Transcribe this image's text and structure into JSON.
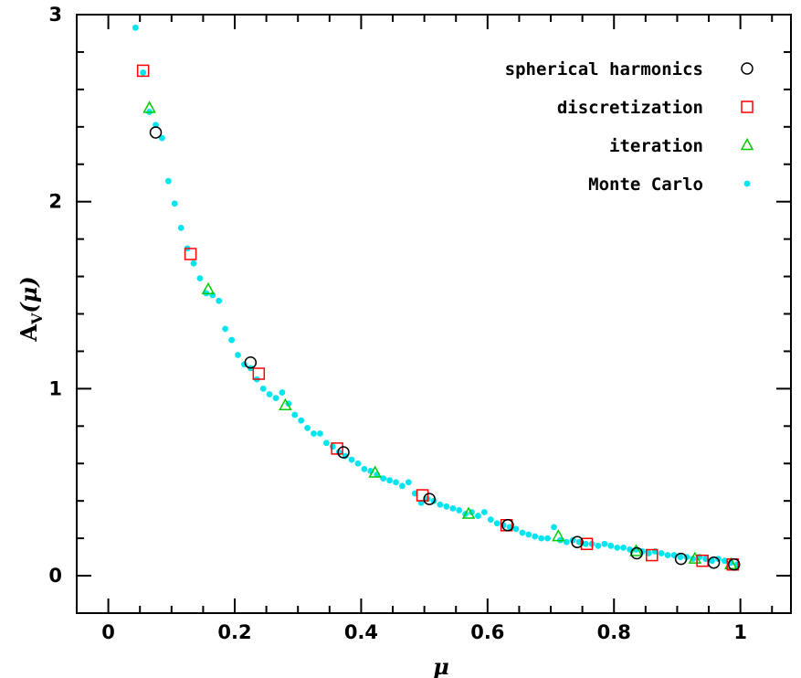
{
  "chart_data": {
    "type": "scatter",
    "title": "",
    "xlabel": "μ",
    "ylabel_main": "A",
    "ylabel_sub": "V",
    "ylabel_paren": "(μ)",
    "xlim": [
      -0.05,
      1.08
    ],
    "ylim": [
      -0.2,
      3.0
    ],
    "x_ticks": [
      0,
      0.2,
      0.4,
      0.6,
      0.8,
      1
    ],
    "x_tick_labels": [
      "0",
      "0.2",
      "0.4",
      "0.6",
      "0.8",
      "1"
    ],
    "y_ticks": [
      0,
      1,
      2,
      3
    ],
    "y_tick_labels": [
      "0",
      "1",
      "2",
      "3"
    ],
    "legend_position": "top-right",
    "grid": false,
    "series": [
      {
        "name": "spherical harmonics",
        "marker": "circle-open",
        "color": "#000000",
        "x": [
          0.075,
          0.225,
          0.372,
          0.508,
          0.632,
          0.742,
          0.836,
          0.906,
          0.958,
          0.99
        ],
        "y": [
          2.37,
          1.14,
          0.66,
          0.41,
          0.27,
          0.18,
          0.12,
          0.09,
          0.07,
          0.06
        ]
      },
      {
        "name": "discretization",
        "marker": "square-open",
        "color": "#ff0000",
        "x": [
          0.055,
          0.13,
          0.238,
          0.362,
          0.497,
          0.63,
          0.757,
          0.86,
          0.94,
          0.988
        ],
        "y": [
          2.7,
          1.72,
          1.08,
          0.68,
          0.43,
          0.27,
          0.17,
          0.11,
          0.08,
          0.06
        ]
      },
      {
        "name": "iteration",
        "marker": "triangle-open",
        "color": "#00cc00",
        "x": [
          0.065,
          0.158,
          0.28,
          0.422,
          0.57,
          0.712,
          0.835,
          0.928,
          0.985
        ],
        "y": [
          2.5,
          1.53,
          0.91,
          0.55,
          0.33,
          0.21,
          0.13,
          0.09,
          0.06
        ]
      },
      {
        "name": "Monte Carlo",
        "marker": "dot",
        "color": "#00e5ee",
        "x": [
          0.043,
          0.055,
          0.065,
          0.075,
          0.085,
          0.095,
          0.105,
          0.115,
          0.125,
          0.135,
          0.145,
          0.155,
          0.165,
          0.175,
          0.185,
          0.195,
          0.205,
          0.215,
          0.225,
          0.235,
          0.245,
          0.255,
          0.265,
          0.275,
          0.285,
          0.295,
          0.305,
          0.315,
          0.325,
          0.335,
          0.345,
          0.355,
          0.365,
          0.375,
          0.385,
          0.395,
          0.405,
          0.415,
          0.425,
          0.435,
          0.445,
          0.455,
          0.465,
          0.475,
          0.485,
          0.495,
          0.505,
          0.515,
          0.525,
          0.535,
          0.545,
          0.555,
          0.565,
          0.575,
          0.585,
          0.595,
          0.605,
          0.615,
          0.625,
          0.635,
          0.645,
          0.655,
          0.665,
          0.675,
          0.685,
          0.695,
          0.705,
          0.715,
          0.725,
          0.735,
          0.745,
          0.755,
          0.765,
          0.775,
          0.785,
          0.795,
          0.805,
          0.815,
          0.825,
          0.835,
          0.845,
          0.855,
          0.865,
          0.875,
          0.885,
          0.895,
          0.905,
          0.915,
          0.925,
          0.935,
          0.945,
          0.955,
          0.965,
          0.975,
          0.985,
          0.995
        ],
        "y": [
          2.93,
          2.69,
          2.48,
          2.41,
          2.34,
          2.11,
          1.99,
          1.86,
          1.75,
          1.67,
          1.59,
          1.51,
          1.5,
          1.47,
          1.32,
          1.26,
          1.18,
          1.13,
          1.11,
          1.05,
          1.0,
          0.97,
          0.95,
          0.98,
          0.92,
          0.86,
          0.83,
          0.79,
          0.76,
          0.76,
          0.71,
          0.69,
          0.66,
          0.64,
          0.62,
          0.6,
          0.57,
          0.56,
          0.54,
          0.52,
          0.51,
          0.5,
          0.48,
          0.5,
          0.44,
          0.39,
          0.41,
          0.4,
          0.38,
          0.37,
          0.36,
          0.35,
          0.33,
          0.34,
          0.32,
          0.34,
          0.3,
          0.28,
          0.27,
          0.26,
          0.25,
          0.23,
          0.22,
          0.21,
          0.2,
          0.2,
          0.26,
          0.19,
          0.18,
          0.19,
          0.18,
          0.17,
          0.17,
          0.16,
          0.17,
          0.16,
          0.15,
          0.15,
          0.14,
          0.14,
          0.13,
          0.12,
          0.13,
          0.12,
          0.11,
          0.11,
          0.1,
          0.1,
          0.09,
          0.1,
          0.09,
          0.08,
          0.09,
          0.08,
          0.07,
          0.06
        ]
      }
    ]
  }
}
